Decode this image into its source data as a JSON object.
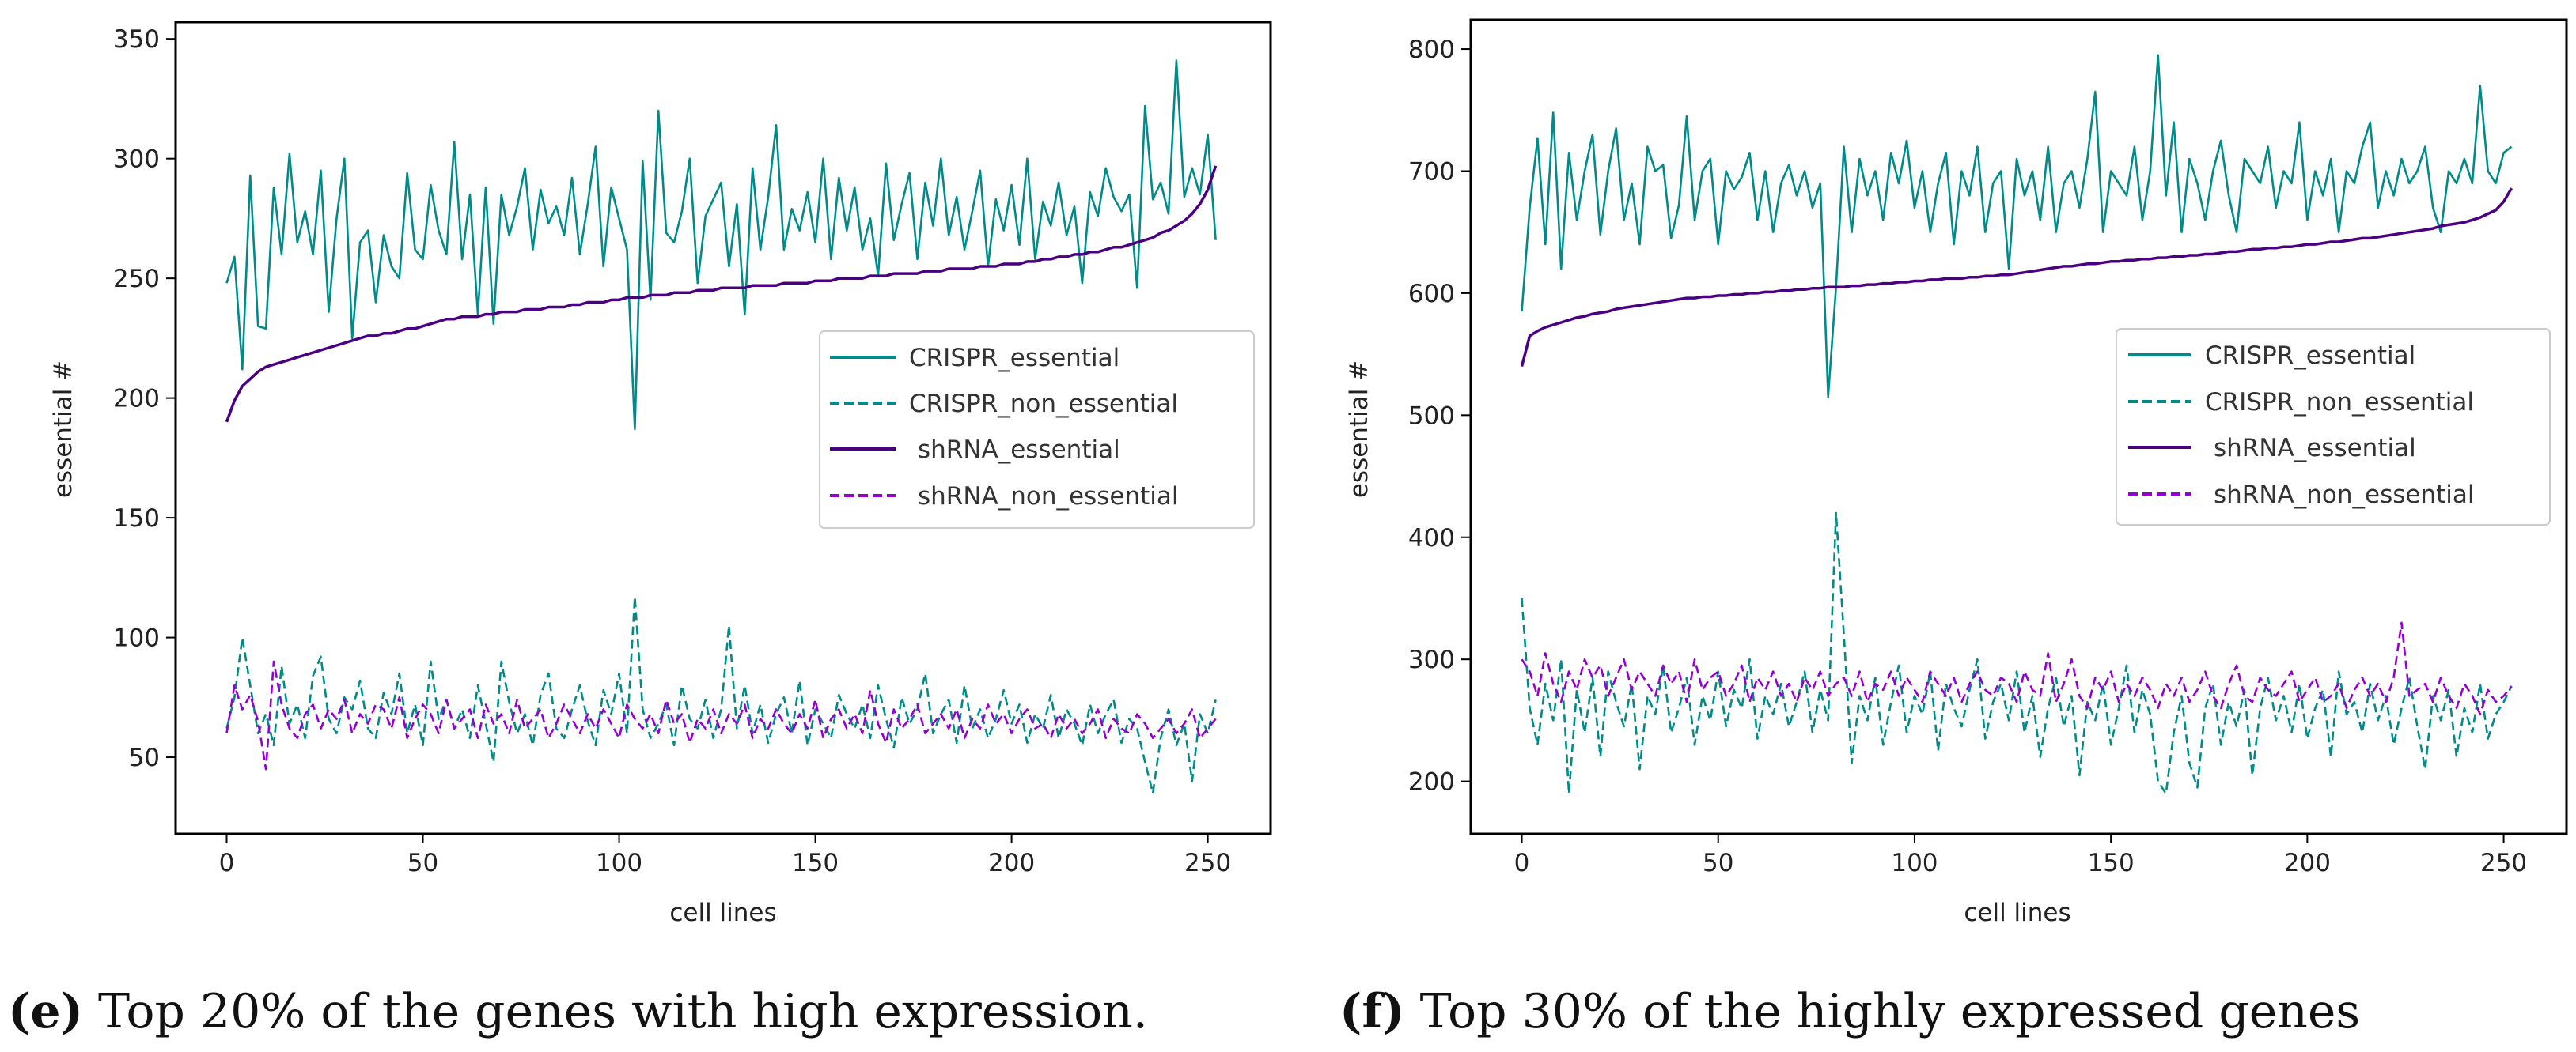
{
  "colors": {
    "crispr": "#008b8b",
    "shrna_essential": "#4b0082",
    "shrna_non_essential": "#9400d3"
  },
  "chart_data": [
    {
      "type": "line",
      "caption_letter": "(e)",
      "caption_text": " Top 20% of the genes with high expression.",
      "xlabel": "cell lines",
      "ylabel": "essential #",
      "xlim": [
        -13,
        266
      ],
      "ylim": [
        18,
        357
      ],
      "xticks": [
        0,
        50,
        100,
        150,
        200,
        250
      ],
      "yticks": [
        50,
        100,
        150,
        200,
        250,
        300,
        350
      ],
      "legend_position": "center-right",
      "x_start": 0,
      "x_step": 2,
      "series": [
        {
          "name": "CRISPR_essential",
          "style": "solid",
          "color": "#008b8b",
          "values": [
            248,
            259,
            212,
            293,
            230,
            229,
            288,
            260,
            302,
            265,
            278,
            260,
            295,
            236,
            275,
            300,
            225,
            265,
            270,
            240,
            268,
            255,
            250,
            294,
            262,
            258,
            289,
            270,
            260,
            307,
            258,
            285,
            235,
            288,
            231,
            285,
            268,
            280,
            296,
            262,
            287,
            273,
            280,
            268,
            292,
            260,
            281,
            305,
            255,
            288,
            275,
            262,
            187,
            299,
            241,
            320,
            269,
            265,
            278,
            300,
            248,
            276,
            283,
            290,
            255,
            281,
            235,
            296,
            262,
            284,
            314,
            262,
            279,
            270,
            286,
            265,
            300,
            258,
            292,
            270,
            288,
            262,
            275,
            251,
            298,
            266,
            281,
            294,
            258,
            290,
            272,
            300,
            268,
            284,
            262,
            278,
            295,
            255,
            283,
            270,
            289,
            264,
            300,
            258,
            282,
            272,
            290,
            268,
            280,
            248,
            286,
            276,
            296,
            284,
            278,
            285,
            246,
            322,
            283,
            290,
            277,
            341,
            284,
            296,
            285,
            310,
            266
          ]
        },
        {
          "name": "CRISPR_non_essential",
          "style": "dashed",
          "color": "#008b8b",
          "values": [
            62,
            75,
            100,
            80,
            60,
            68,
            55,
            88,
            64,
            72,
            58,
            84,
            92,
            66,
            60,
            75,
            70,
            82,
            62,
            58,
            77,
            68,
            85,
            60,
            72,
            55,
            90,
            66,
            74,
            62,
            70,
            58,
            80,
            64,
            48,
            90,
            73,
            60,
            68,
            55,
            76,
            85,
            62,
            58,
            70,
            80,
            65,
            55,
            78,
            68,
            85,
            60,
            117,
            70,
            58,
            64,
            72,
            55,
            80,
            66,
            62,
            74,
            58,
            70,
            105,
            62,
            80,
            60,
            72,
            56,
            68,
            75,
            60,
            82,
            55,
            70,
            64,
            58,
            76,
            68,
            62,
            72,
            58,
            80,
            66,
            54,
            75,
            64,
            70,
            85,
            60,
            68,
            74,
            56,
            80,
            62,
            70,
            58,
            66,
            78,
            64,
            72,
            56,
            68,
            62,
            76,
            58,
            70,
            64,
            55,
            72,
            60,
            68,
            74,
            56,
            66,
            62,
            48,
            35,
            58,
            70,
            55,
            64,
            40,
            68,
            60,
            74
          ]
        },
        {
          "name": "shRNA_essential",
          "style": "solid",
          "color": "#4b0082",
          "values": [
            190,
            199,
            205,
            208,
            211,
            213,
            214,
            215,
            216,
            217,
            218,
            219,
            220,
            221,
            222,
            223,
            224,
            225,
            226,
            226,
            227,
            227,
            228,
            229,
            229,
            230,
            231,
            232,
            233,
            233,
            234,
            234,
            234,
            235,
            235,
            236,
            236,
            236,
            237,
            237,
            237,
            238,
            238,
            238,
            239,
            239,
            240,
            240,
            240,
            241,
            241,
            242,
            242,
            242,
            243,
            243,
            243,
            244,
            244,
            244,
            245,
            245,
            245,
            246,
            246,
            246,
            246,
            247,
            247,
            247,
            247,
            248,
            248,
            248,
            248,
            249,
            249,
            249,
            250,
            250,
            250,
            250,
            251,
            251,
            251,
            252,
            252,
            252,
            252,
            253,
            253,
            253,
            254,
            254,
            254,
            254,
            255,
            255,
            255,
            256,
            256,
            256,
            257,
            257,
            258,
            258,
            259,
            259,
            260,
            260,
            261,
            261,
            262,
            263,
            263,
            264,
            265,
            266,
            267,
            269,
            270,
            272,
            274,
            277,
            281,
            287,
            297
          ]
        },
        {
          "name": "shRNA_non_essential",
          "style": "dashed",
          "color": "#9400d3",
          "values": [
            60,
            80,
            70,
            76,
            65,
            45,
            90,
            72,
            62,
            58,
            68,
            72,
            62,
            70,
            66,
            74,
            60,
            68,
            64,
            72,
            70,
            62,
            75,
            58,
            66,
            72,
            68,
            60,
            74,
            62,
            66,
            70,
            58,
            72,
            64,
            68,
            60,
            74,
            62,
            66,
            70,
            58,
            64,
            72,
            66,
            60,
            68,
            62,
            70,
            64,
            58,
            72,
            66,
            62,
            68,
            60,
            74,
            64,
            68,
            56,
            66,
            62,
            70,
            60,
            68,
            64,
            72,
            58,
            66,
            62,
            70,
            64,
            60,
            68,
            62,
            74,
            58,
            66,
            70,
            62,
            68,
            60,
            78,
            64,
            56,
            70,
            62,
            66,
            72,
            60,
            64,
            68,
            62,
            70,
            58,
            66,
            62,
            72,
            64,
            68,
            60,
            66,
            70,
            62,
            64,
            58,
            68,
            62,
            66,
            60,
            64,
            70,
            58,
            66,
            62,
            60,
            68,
            64,
            58,
            62,
            66,
            60,
            64,
            70,
            58,
            62,
            66
          ]
        }
      ]
    },
    {
      "type": "line",
      "caption_letter": "(f)",
      "caption_text": " Top 30% of the highly expressed genes",
      "xlabel": "cell lines",
      "ylabel": "essential #",
      "xlim": [
        -13,
        266
      ],
      "ylim": [
        157,
        824
      ],
      "xticks": [
        0,
        50,
        100,
        150,
        200,
        250
      ],
      "yticks": [
        200,
        300,
        400,
        500,
        600,
        700,
        800
      ],
      "legend_position": "center-right",
      "x_start": 0,
      "x_step": 2,
      "series": [
        {
          "name": "CRISPR_essential",
          "style": "solid",
          "color": "#008b8b",
          "values": [
            585,
            670,
            727,
            640,
            748,
            620,
            715,
            660,
            700,
            730,
            648,
            700,
            735,
            660,
            690,
            640,
            720,
            700,
            705,
            645,
            672,
            745,
            660,
            700,
            710,
            640,
            700,
            685,
            695,
            715,
            660,
            700,
            650,
            690,
            705,
            680,
            700,
            670,
            690,
            515,
            605,
            720,
            650,
            710,
            680,
            700,
            660,
            715,
            690,
            725,
            670,
            700,
            650,
            690,
            715,
            640,
            700,
            680,
            720,
            650,
            690,
            700,
            620,
            710,
            680,
            700,
            660,
            720,
            650,
            690,
            700,
            670,
            710,
            765,
            650,
            700,
            690,
            680,
            720,
            660,
            700,
            795,
            680,
            740,
            650,
            710,
            690,
            660,
            700,
            725,
            680,
            650,
            710,
            700,
            690,
            720,
            670,
            700,
            690,
            740,
            660,
            700,
            680,
            710,
            650,
            700,
            690,
            720,
            740,
            670,
            700,
            680,
            710,
            690,
            700,
            720,
            670,
            650,
            700,
            690,
            710,
            690,
            770,
            700,
            690,
            715,
            720
          ]
        },
        {
          "name": "CRISPR_non_essential",
          "style": "dashed",
          "color": "#008b8b",
          "values": [
            350,
            260,
            230,
            280,
            250,
            300,
            190,
            275,
            240,
            285,
            220,
            290,
            265,
            245,
            280,
            210,
            270,
            255,
            295,
            240,
            260,
            285,
            230,
            270,
            250,
            290,
            245,
            275,
            260,
            300,
            235,
            270,
            255,
            280,
            245,
            265,
            290,
            240,
            275,
            250,
            420,
            320,
            215,
            270,
            250,
            285,
            230,
            265,
            295,
            240,
            270,
            255,
            290,
            225,
            280,
            260,
            245,
            275,
            300,
            235,
            265,
            280,
            250,
            290,
            240,
            270,
            220,
            260,
            285,
            245,
            270,
            205,
            265,
            250,
            280,
            230,
            260,
            295,
            240,
            275,
            255,
            200,
            190,
            240,
            270,
            215,
            195,
            260,
            280,
            230,
            265,
            245,
            275,
            205,
            260,
            285,
            250,
            270,
            240,
            280,
            235,
            260,
            275,
            220,
            290,
            255,
            265,
            240,
            280,
            250,
            270,
            230,
            260,
            285,
            245,
            210,
            270,
            250,
            275,
            220,
            260,
            240,
            280,
            235,
            255,
            265,
            278
          ]
        },
        {
          "name": "shRNA_essential",
          "style": "solid",
          "color": "#4b0082",
          "values": [
            540,
            565,
            569,
            572,
            574,
            576,
            578,
            580,
            581,
            583,
            584,
            585,
            587,
            588,
            589,
            590,
            591,
            592,
            593,
            594,
            595,
            596,
            596,
            597,
            597,
            598,
            598,
            599,
            599,
            600,
            600,
            601,
            601,
            602,
            602,
            603,
            603,
            604,
            604,
            605,
            605,
            605,
            606,
            606,
            607,
            607,
            608,
            608,
            609,
            609,
            610,
            610,
            611,
            611,
            612,
            612,
            612,
            613,
            613,
            614,
            614,
            615,
            615,
            616,
            617,
            618,
            619,
            620,
            621,
            622,
            622,
            623,
            624,
            624,
            625,
            626,
            626,
            627,
            627,
            628,
            628,
            629,
            629,
            630,
            630,
            631,
            631,
            632,
            632,
            633,
            634,
            634,
            635,
            636,
            636,
            637,
            637,
            638,
            638,
            639,
            640,
            640,
            641,
            642,
            642,
            643,
            644,
            645,
            645,
            646,
            647,
            648,
            649,
            650,
            651,
            652,
            653,
            655,
            656,
            657,
            658,
            660,
            662,
            665,
            668,
            675,
            686
          ]
        },
        {
          "name": "shRNA_non_essential",
          "style": "dashed",
          "color": "#9400d3",
          "values": [
            300,
            290,
            270,
            305,
            280,
            265,
            290,
            275,
            300,
            285,
            295,
            270,
            285,
            300,
            275,
            290,
            280,
            270,
            295,
            280,
            290,
            265,
            300,
            275,
            285,
            290,
            270,
            280,
            295,
            265,
            285,
            275,
            290,
            270,
            280,
            265,
            285,
            275,
            290,
            270,
            280,
            285,
            270,
            290,
            265,
            280,
            275,
            290,
            270,
            285,
            275,
            265,
            290,
            280,
            270,
            285,
            265,
            280,
            290,
            275,
            270,
            285,
            280,
            265,
            290,
            275,
            270,
            305,
            265,
            280,
            300,
            270,
            260,
            285,
            275,
            290,
            265,
            280,
            270,
            285,
            275,
            260,
            280,
            270,
            285,
            265,
            275,
            290,
            270,
            260,
            280,
            295,
            270,
            265,
            285,
            275,
            270,
            280,
            290,
            265,
            275,
            285,
            265,
            270,
            280,
            260,
            275,
            285,
            270,
            280,
            265,
            285,
            330,
            270,
            275,
            280,
            265,
            285,
            270,
            260,
            280,
            270,
            255,
            275,
            265,
            270,
            278
          ]
        }
      ]
    }
  ]
}
